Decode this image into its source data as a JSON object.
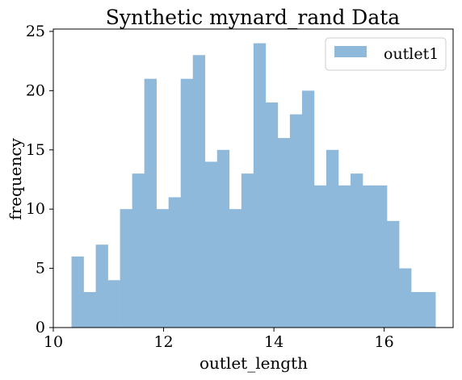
{
  "chart_data": {
    "type": "bar",
    "title": "Synthetic mynard_rand Data",
    "xlabel": "outlet_length",
    "ylabel": "frequency",
    "xlim": [
      10.0,
      17.25
    ],
    "ylim": [
      0,
      25.2
    ],
    "xticks": [
      10,
      12,
      14,
      16
    ],
    "yticks": [
      0,
      5,
      10,
      15,
      20,
      25
    ],
    "grid": false,
    "legend_position": "top-right",
    "series": [
      {
        "name": "outlet1",
        "color": "#8fb9da",
        "bin_start": 10.33,
        "bin_width": 0.22,
        "values": [
          6,
          3,
          7,
          4,
          10,
          13,
          21,
          10,
          11,
          21,
          23,
          14,
          15,
          10,
          13,
          24,
          19,
          16,
          18,
          20,
          12,
          15,
          12,
          13,
          12,
          12,
          9,
          5,
          3,
          3
        ]
      }
    ]
  }
}
